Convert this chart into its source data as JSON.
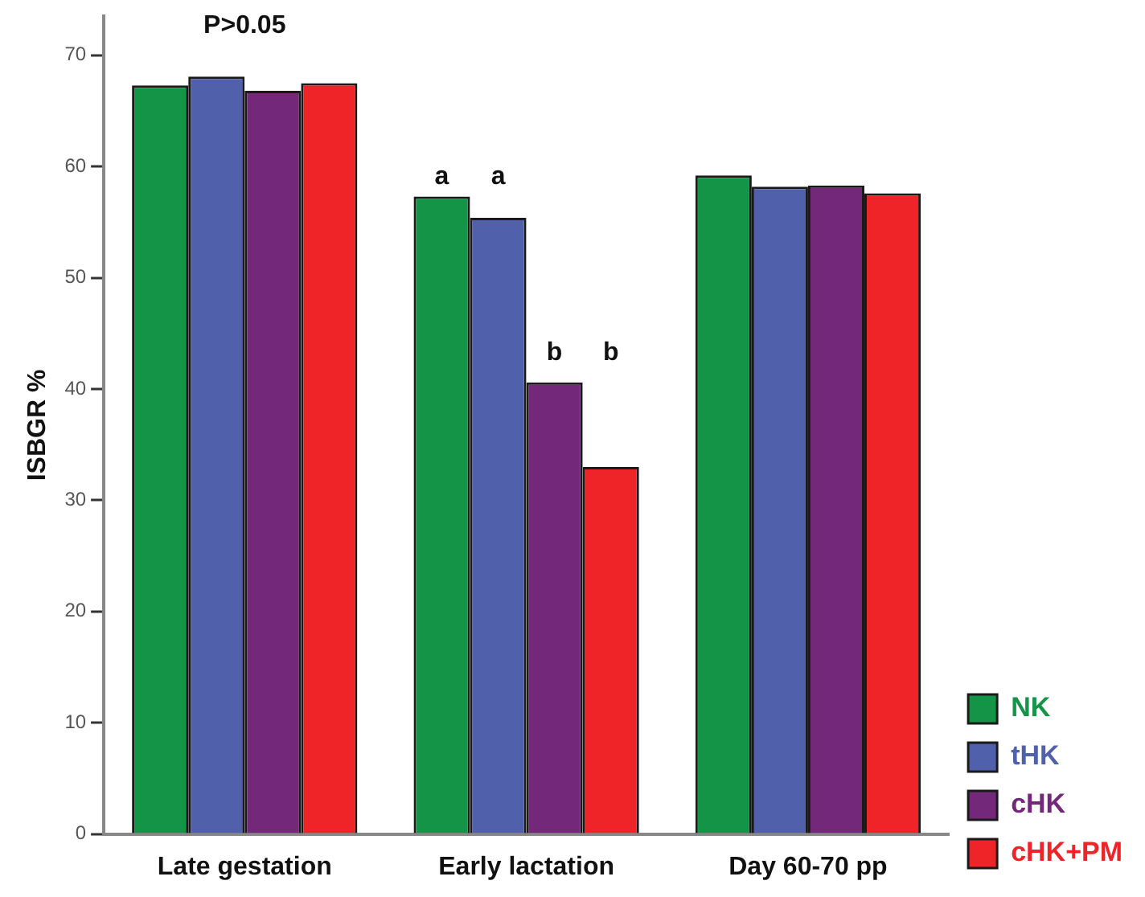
{
  "chart_data": {
    "type": "bar",
    "ylabel": "ISBGR %",
    "categories": [
      "Late gestation",
      "Early lactation",
      "Day 60-70 pp"
    ],
    "series": [
      {
        "name": "NK",
        "color": "#139447",
        "values": [
          67.3,
          57.3,
          59.2
        ]
      },
      {
        "name": "tHK",
        "color": "#5060aa",
        "values": [
          68.1,
          55.4,
          58.2
        ]
      },
      {
        "name": "cHK",
        "color": "#74287a",
        "values": [
          66.8,
          40.6,
          58.3
        ]
      },
      {
        "name": "cHK+PM",
        "color": "#ee2428",
        "values": [
          67.5,
          33.0,
          57.6
        ]
      }
    ],
    "ylim": [
      0,
      73.5
    ],
    "yticks": [
      0,
      10,
      20,
      30,
      40,
      50,
      60,
      70
    ],
    "grid": false,
    "legend": "bottom right",
    "annotations": [
      "P>0.05",
      "a",
      "a",
      "b",
      "b"
    ]
  }
}
